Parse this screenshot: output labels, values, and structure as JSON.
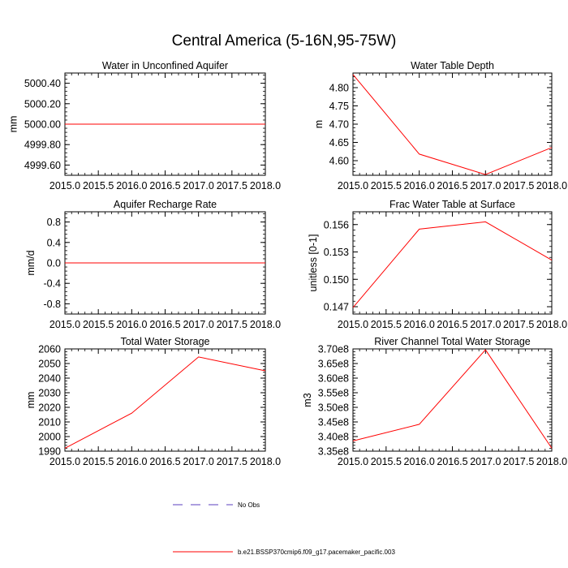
{
  "figure_title": "Central America (5-16N,95-75W)",
  "legend": [
    {
      "label": "No Obs",
      "color": "#5b3fbf",
      "style": "dashed"
    },
    {
      "label": "b.e21.BSSP370cmip6.f09_g17.pacemaker_pacific.003",
      "color": "#ff0000",
      "style": "solid"
    }
  ],
  "chart_data": [
    {
      "type": "line",
      "title": "Water in Unconfined Aquifer",
      "xlabel": "",
      "ylabel": "mm",
      "xlim": [
        2015.0,
        2018.0
      ],
      "ylim": [
        4999.5,
        5000.5
      ],
      "xticks": [
        2015.0,
        2015.5,
        2016.0,
        2016.5,
        2017.0,
        2017.5,
        2018.0
      ],
      "xtick_labels": [
        "2015.0",
        "2015.5",
        "2016.0",
        "2016.5",
        "2017.0",
        "2017.5",
        "2018.0"
      ],
      "yticks": [
        4999.6,
        4999.8,
        5000.0,
        5000.2,
        5000.4
      ],
      "ytick_labels": [
        "4999.60",
        "4999.80",
        "5000.00",
        "5000.20",
        "5000.40"
      ],
      "series": [
        {
          "name": "b.e21.BSSP370cmip6.f09_g17.pacemaker_pacific.003",
          "color": "#ff0000",
          "x": [
            2015,
            2016,
            2017,
            2018
          ],
          "y": [
            5000.0,
            5000.0,
            5000.0,
            5000.0
          ]
        }
      ]
    },
    {
      "type": "line",
      "title": "Water Table Depth",
      "xlabel": "",
      "ylabel": "m",
      "xlim": [
        2015.0,
        2018.0
      ],
      "ylim": [
        4.56,
        4.84
      ],
      "xticks": [
        2015.0,
        2015.5,
        2016.0,
        2016.5,
        2017.0,
        2017.5,
        2018.0
      ],
      "xtick_labels": [
        "2015.0",
        "2015.5",
        "2016.0",
        "2016.5",
        "2017.0",
        "2017.5",
        "2018.0"
      ],
      "yticks": [
        4.6,
        4.65,
        4.7,
        4.75,
        4.8
      ],
      "ytick_labels": [
        "4.60",
        "4.65",
        "4.70",
        "4.75",
        "4.80"
      ],
      "series": [
        {
          "name": "b.e21.BSSP370cmip6.f09_g17.pacemaker_pacific.003",
          "color": "#ff0000",
          "x": [
            2015,
            2016,
            2017,
            2018
          ],
          "y": [
            4.836,
            4.618,
            4.562,
            4.636
          ]
        }
      ]
    },
    {
      "type": "line",
      "title": "Aquifer Recharge Rate",
      "xlabel": "",
      "ylabel": "mm/d",
      "xlim": [
        2015.0,
        2018.0
      ],
      "ylim": [
        -1.0,
        1.0
      ],
      "xticks": [
        2015.0,
        2015.5,
        2016.0,
        2016.5,
        2017.0,
        2017.5,
        2018.0
      ],
      "xtick_labels": [
        "2015.0",
        "2015.5",
        "2016.0",
        "2016.5",
        "2017.0",
        "2017.5",
        "2018.0"
      ],
      "yticks": [
        -0.8,
        -0.4,
        0.0,
        0.4,
        0.8
      ],
      "ytick_labels": [
        "-0.8",
        "-0.4",
        "0.0",
        "0.4",
        "0.8"
      ],
      "series": [
        {
          "name": "b.e21.BSSP370cmip6.f09_g17.pacemaker_pacific.003",
          "color": "#ff0000",
          "x": [
            2015,
            2016,
            2017,
            2018
          ],
          "y": [
            0.0,
            0.0,
            0.0,
            0.0
          ]
        }
      ]
    },
    {
      "type": "line",
      "title": "Frac Water Table at Surface",
      "xlabel": "",
      "ylabel": "unitless [0-1]",
      "xlim": [
        2015.0,
        2018.0
      ],
      "ylim": [
        0.1462,
        0.1574
      ],
      "xticks": [
        2015.0,
        2015.5,
        2016.0,
        2016.5,
        2017.0,
        2017.5,
        2018.0
      ],
      "xtick_labels": [
        "2015.0",
        "2015.5",
        "2016.0",
        "2016.5",
        "2017.0",
        "2017.5",
        "2018.0"
      ],
      "yticks": [
        0.147,
        0.15,
        0.153,
        0.156
      ],
      "ytick_labels": [
        "0.147",
        "0.150",
        "0.153",
        "0.156"
      ],
      "series": [
        {
          "name": "b.e21.BSSP370cmip6.f09_g17.pacemaker_pacific.003",
          "color": "#ff0000",
          "x": [
            2015,
            2016,
            2017,
            2018
          ],
          "y": [
            0.1469,
            0.1555,
            0.1563,
            0.1521
          ]
        }
      ]
    },
    {
      "type": "line",
      "title": "Total Water Storage",
      "xlabel": "",
      "ylabel": "mm",
      "xlim": [
        2015.0,
        2018.0
      ],
      "ylim": [
        1990,
        2060
      ],
      "xticks": [
        2015.0,
        2015.5,
        2016.0,
        2016.5,
        2017.0,
        2017.5,
        2018.0
      ],
      "xtick_labels": [
        "2015.0",
        "2015.5",
        "2016.0",
        "2016.5",
        "2017.0",
        "2017.5",
        "2018.0"
      ],
      "yticks": [
        1990,
        2000,
        2010,
        2020,
        2030,
        2040,
        2050,
        2060
      ],
      "ytick_labels": [
        "1990",
        "2000",
        "2010",
        "2020",
        "2030",
        "2040",
        "2050",
        "2060"
      ],
      "series": [
        {
          "name": "b.e21.BSSP370cmip6.f09_g17.pacemaker_pacific.003",
          "color": "#ff0000",
          "x": [
            2015,
            2016,
            2017,
            2018
          ],
          "y": [
            1992,
            2016,
            2054.5,
            2045
          ]
        }
      ]
    },
    {
      "type": "line",
      "title": "River Channel Total Water Storage",
      "xlabel": "",
      "ylabel": "m3",
      "xlim": [
        2015.0,
        2018.0
      ],
      "ylim": [
        335000000,
        370000000
      ],
      "xticks": [
        2015.0,
        2015.5,
        2016.0,
        2016.5,
        2017.0,
        2017.5,
        2018.0
      ],
      "xtick_labels": [
        "2015.0",
        "2015.5",
        "2016.0",
        "2016.5",
        "2017.0",
        "2017.5",
        "2018.0"
      ],
      "yticks": [
        335000000,
        340000000,
        345000000,
        350000000,
        355000000,
        360000000,
        365000000,
        370000000
      ],
      "ytick_labels": [
        "3.35e8",
        "3.40e8",
        "3.45e8",
        "3.50e8",
        "3.55e8",
        "3.60e8",
        "3.65e8",
        "3.70e8"
      ],
      "series": [
        {
          "name": "b.e21.BSSP370cmip6.f09_g17.pacemaker_pacific.003",
          "color": "#ff0000",
          "x": [
            2015,
            2016,
            2017,
            2018
          ],
          "y": [
            338500000,
            344200000,
            369700000,
            336000000
          ]
        }
      ]
    }
  ]
}
